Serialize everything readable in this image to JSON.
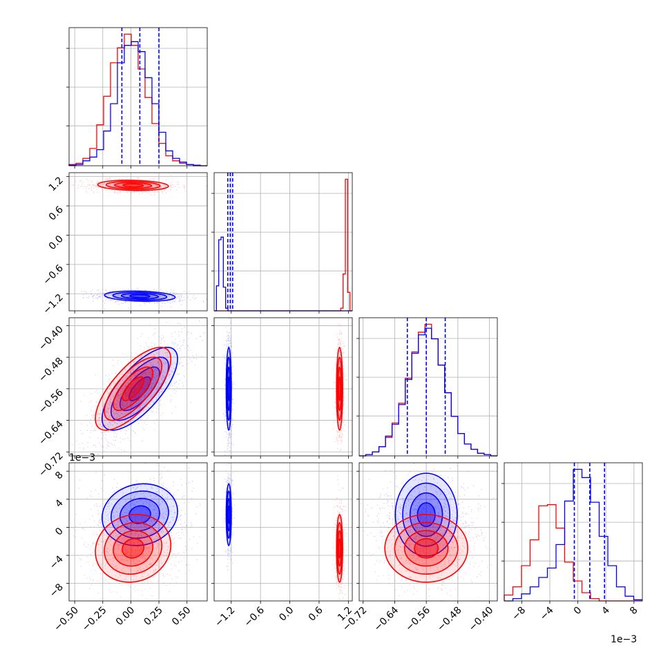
{
  "chart_data": {
    "type": "corner",
    "grid": true,
    "series": [
      {
        "name": "",
        "color": "#0000ff"
      },
      {
        "name": "",
        "color": "#ff0000"
      }
    ],
    "quantile_line_color": "#0000ff",
    "offset_labels": {
      "row3": "1e−3",
      "bottom_col3": "1e−3"
    },
    "params": [
      {
        "range": [
          -0.55,
          0.68
        ],
        "ticks": [
          -0.5,
          -0.25,
          0.0,
          0.25,
          0.5
        ],
        "tick_labels": [
          "−0.50",
          "−0.25",
          "0.00",
          "0.25",
          "0.50"
        ],
        "quantiles": [
          -0.08,
          0.08,
          0.25
        ],
        "hist": {
          "blue": [
            0.005,
            0.01,
            0.04,
            0.07,
            0.13,
            0.28,
            0.5,
            0.83,
            0.97,
            1.0,
            0.92,
            0.71,
            0.5,
            0.27,
            0.12,
            0.06,
            0.03,
            0.01,
            0.005,
            0.0
          ],
          "red": [
            0.01,
            0.02,
            0.06,
            0.14,
            0.33,
            0.56,
            0.83,
            0.95,
            1.06,
            0.97,
            0.78,
            0.55,
            0.34,
            0.18,
            0.08,
            0.04,
            0.02,
            0.01,
            0.0,
            0.0
          ]
        }
      },
      {
        "range": [
          -1.55,
          1.28
        ],
        "ticks": [
          -1.2,
          -0.6,
          0.0,
          0.6,
          1.2
        ],
        "tick_labels": [
          "−1.2",
          "−0.6",
          "0.0",
          "0.6",
          "1.2"
        ],
        "quantiles": [
          -1.27,
          -1.22,
          -1.17
        ],
        "hist": {
          "blue": [
            0.0,
            0.19,
            0.54,
            0.56,
            0.18,
            0.02,
            0,
            0,
            0,
            0,
            0,
            0,
            0,
            0,
            0,
            0,
            0,
            0,
            0,
            0,
            0,
            0,
            0,
            0,
            0,
            0,
            0,
            0,
            0,
            0,
            0,
            0,
            0,
            0,
            0,
            0,
            0,
            0,
            0,
            0,
            0,
            0,
            0,
            0,
            0,
            0,
            0,
            0,
            0,
            0,
            0,
            0,
            0,
            0,
            0,
            0,
            0,
            0,
            0,
            0
          ],
          "red": [
            0,
            0,
            0,
            0,
            0,
            0,
            0,
            0,
            0,
            0,
            0,
            0,
            0,
            0,
            0,
            0,
            0,
            0,
            0,
            0,
            0,
            0,
            0,
            0,
            0,
            0,
            0,
            0,
            0,
            0,
            0,
            0,
            0,
            0,
            0,
            0,
            0,
            0,
            0,
            0,
            0,
            0,
            0,
            0,
            0,
            0,
            0,
            0,
            0,
            0,
            0,
            0,
            0,
            0,
            0,
            0.02,
            0.28,
            1.0,
            0.14,
            0.0
          ]
        },
        "hist_bins": 60
      },
      {
        "range": [
          -0.73,
          -0.38
        ],
        "ticks": [
          -0.72,
          -0.64,
          -0.56,
          -0.48,
          -0.4
        ],
        "tick_labels": [
          "−0.72",
          "−0.64",
          "−0.56",
          "−0.48",
          "−0.40"
        ],
        "quantiles": [
          -0.608,
          -0.56,
          -0.512
        ],
        "hist": {
          "blue": [
            0.0,
            0.01,
            0.03,
            0.07,
            0.15,
            0.24,
            0.39,
            0.58,
            0.78,
            0.92,
            0.97,
            0.89,
            0.69,
            0.48,
            0.3,
            0.17,
            0.09,
            0.05,
            0.02,
            0.01,
            0.0
          ],
          "red": [
            0.0,
            0.01,
            0.03,
            0.07,
            0.14,
            0.25,
            0.4,
            0.59,
            0.79,
            0.94,
            1.0,
            0.89,
            0.69,
            0.48,
            0.3,
            0.17,
            0.09,
            0.05,
            0.02,
            0.01,
            0.0
          ]
        }
      },
      {
        "range": [
          -10.5,
          9.2
        ],
        "ticks": [
          -8,
          -4,
          0,
          4,
          8
        ],
        "tick_labels": [
          "−8",
          "−4",
          "0",
          "4",
          "8"
        ],
        "quantiles": [
          -0.5,
          1.7,
          3.8
        ],
        "hist": {
          "blue": [
            0.0,
            0.02,
            0.06,
            0.12,
            0.2,
            0.28,
            0.48,
            0.85,
            1.12,
            1.05,
            0.84,
            0.55,
            0.3,
            0.12,
            0.04,
            0.01
          ],
          "red": [
            0.05,
            0.12,
            0.3,
            0.52,
            0.81,
            0.82,
            0.62,
            0.33,
            0.17,
            0.07,
            0.02,
            0.0,
            0.0,
            0.0,
            0.0,
            0.0
          ]
        }
      }
    ],
    "pairs": [
      {
        "row": 1,
        "col": 0,
        "blue": {
          "mean": [
            0.08,
            -1.25
          ],
          "sd": [
            0.15,
            0.05
          ],
          "rho": -0.2
        },
        "red": {
          "mean": [
            0.02,
            1.02
          ],
          "sd": [
            0.15,
            0.05
          ],
          "rho": -0.15
        }
      },
      {
        "row": 2,
        "col": 0,
        "blue": {
          "mean": [
            0.08,
            -0.56
          ],
          "sd": [
            0.16,
            0.05
          ],
          "rho": 0.72
        },
        "red": {
          "mean": [
            0.02,
            -0.56
          ],
          "sd": [
            0.16,
            0.05
          ],
          "rho": 0.72
        }
      },
      {
        "row": 2,
        "col": 1,
        "blue": {
          "mean": [
            -1.25,
            -0.56
          ],
          "sd": [
            0.025,
            0.05
          ],
          "rho": 0.0
        },
        "red": {
          "mean": [
            1.02,
            -0.56
          ],
          "sd": [
            0.03,
            0.05
          ],
          "rho": 0.0
        }
      },
      {
        "row": 3,
        "col": 0,
        "blue": {
          "mean": [
            0.08,
            1.8
          ],
          "sd": [
            0.16,
            2.1
          ],
          "rho": 0.1
        },
        "red": {
          "mean": [
            0.02,
            -3.0
          ],
          "sd": [
            0.16,
            2.3
          ],
          "rho": 0.1
        }
      },
      {
        "row": 3,
        "col": 1,
        "blue": {
          "mean": [
            -1.25,
            1.8
          ],
          "sd": [
            0.025,
            2.1
          ],
          "rho": 0.0
        },
        "red": {
          "mean": [
            1.02,
            -3.0
          ],
          "sd": [
            0.03,
            2.3
          ],
          "rho": 0.0
        }
      },
      {
        "row": 3,
        "col": 2,
        "blue": {
          "mean": [
            -0.56,
            1.8
          ],
          "sd": [
            0.05,
            2.1
          ],
          "rho": 0.0
        },
        "red": {
          "mean": [
            -0.56,
            -3.0
          ],
          "sd": [
            0.05,
            2.3
          ],
          "rho": 0.0
        }
      }
    ]
  }
}
